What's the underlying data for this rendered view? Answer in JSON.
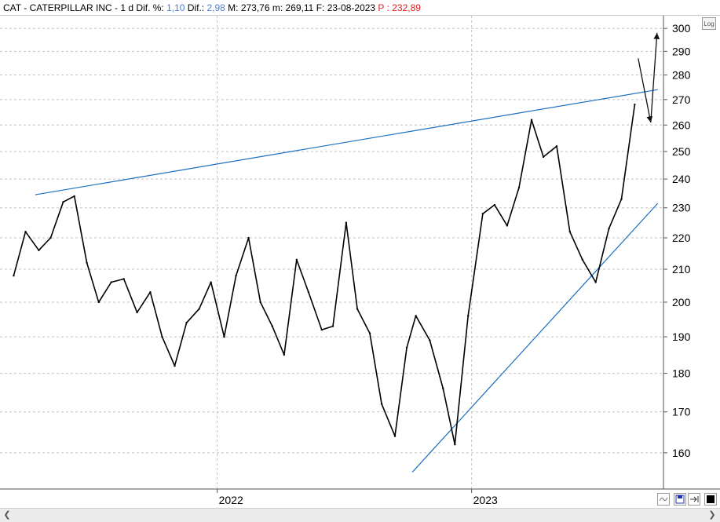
{
  "header": {
    "ticker": "CAT",
    "separator": "-",
    "name": "CATERPILLAR INC",
    "separator2": "-",
    "period": "1 d",
    "dif_pct_label": "Dif. %:",
    "dif_pct_value": "1,10",
    "dif_label": "Dif.:",
    "dif_value": "2,98",
    "max_label": "M:",
    "max_value": "273,76",
    "min_label": "m:",
    "min_value": "269,11",
    "date_label": "F:",
    "date_value": "23-08-2023",
    "p_label": "P :",
    "p_value": "232,89",
    "blue_color": "#4a7fd4",
    "red_color": "#e02020"
  },
  "log_button": "Log",
  "icons": {
    "scroll_left": "chevron-left-icon",
    "scroll_right": "chevron-right-icon",
    "chart_type": "wave-icon",
    "save": "floppy-disk-icon",
    "pan": "arrow-to-line-icon",
    "color": "black-square-icon"
  },
  "chart_data": {
    "type": "line",
    "title": "",
    "xlabel": "",
    "ylabel": "",
    "y_scale": "log",
    "ylim": [
      152,
      305
    ],
    "y_ticks": [
      160,
      170,
      180,
      190,
      200,
      210,
      220,
      230,
      240,
      250,
      260,
      270,
      280,
      290,
      300
    ],
    "x_ticks": [
      "2022",
      "2023"
    ],
    "grid": true,
    "series": [
      {
        "color": "#000000",
        "x": [
          "2021-03-15",
          "2021-04-01",
          "2021-04-20",
          "2021-05-07",
          "2021-05-25",
          "2021-06-10",
          "2021-06-28",
          "2021-07-15",
          "2021-08-02",
          "2021-08-20",
          "2021-09-08",
          "2021-09-27",
          "2021-10-14",
          "2021-11-01",
          "2021-11-18",
          "2021-12-06",
          "2021-12-23",
          "2022-01-11",
          "2022-01-28",
          "2022-02-15",
          "2022-03-04",
          "2022-03-21",
          "2022-04-07",
          "2022-04-25",
          "2022-05-12",
          "2022-05-31",
          "2022-06-16",
          "2022-07-05",
          "2022-07-21",
          "2022-08-08",
          "2022-08-25",
          "2022-09-13",
          "2022-09-30",
          "2022-10-13",
          "2022-11-02",
          "2022-11-21",
          "2022-12-08",
          "2022-12-27",
          "2023-01-17",
          "2023-02-03",
          "2023-02-21",
          "2023-03-10",
          "2023-03-28",
          "2023-04-14",
          "2023-05-03",
          "2023-05-22",
          "2023-06-09",
          "2023-06-28",
          "2023-07-17",
          "2023-08-04",
          "2023-08-23"
        ],
        "values": [
          208,
          222,
          216,
          220,
          232,
          234,
          212,
          200,
          206,
          207,
          197,
          203,
          190,
          182,
          194,
          198,
          206,
          190,
          208,
          220,
          200,
          193,
          185,
          213,
          203,
          192,
          193,
          225,
          198,
          191,
          172,
          164,
          187,
          196,
          189,
          176,
          162,
          196,
          228,
          231,
          224,
          237,
          262,
          248,
          252,
          222,
          213,
          206,
          223,
          233,
          268
        ]
      }
    ],
    "trendlines": [
      {
        "x": [
          "2021-04-15",
          "2023-09-25"
        ],
        "values": [
          234.5,
          274
        ],
        "color": "#1a6fc0"
      },
      {
        "x": [
          "2022-10-08",
          "2023-09-25"
        ],
        "values": [
          155.5,
          231.5
        ],
        "color": "#1a6fc0"
      }
    ],
    "annotations": [
      {
        "type": "arrow",
        "x": [
          "2023-08-28",
          "2023-09-15"
        ],
        "values": [
          287,
          261
        ]
      },
      {
        "type": "arrow",
        "x": [
          "2023-09-15",
          "2023-09-24"
        ],
        "values": [
          261,
          298
        ]
      }
    ]
  }
}
